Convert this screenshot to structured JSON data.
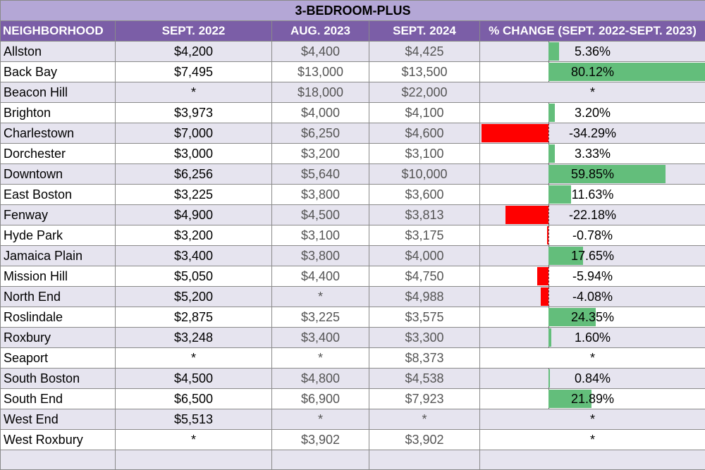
{
  "title": "3-BEDROOM-PLUS",
  "headers": [
    "NEIGHBORHOOD",
    "SEPT. 2022",
    "AUG. 2023",
    "SEPT. 2024",
    "% CHANGE (SEPT. 2022-SEPT. 2023)"
  ],
  "rows": [
    {
      "name": "Allston",
      "sep22": "$4,200",
      "aug23": "$4,400",
      "sep24": "$4,425",
      "pct": "5.36%",
      "val": 5.36
    },
    {
      "name": "Back Bay",
      "sep22": "$7,495",
      "aug23": "$13,000",
      "sep24": "$13,500",
      "pct": "80.12%",
      "val": 80.12
    },
    {
      "name": "Beacon Hill",
      "sep22": "*",
      "aug23": "$18,000",
      "sep24": "$22,000",
      "pct": "*",
      "val": null
    },
    {
      "name": "Brighton",
      "sep22": "$3,973",
      "aug23": "$4,000",
      "sep24": "$4,100",
      "pct": "3.20%",
      "val": 3.2
    },
    {
      "name": "Charlestown",
      "sep22": "$7,000",
      "aug23": "$6,250",
      "sep24": "$4,600",
      "pct": "-34.29%",
      "val": -34.29
    },
    {
      "name": "Dorchester",
      "sep22": "$3,000",
      "aug23": "$3,200",
      "sep24": "$3,100",
      "pct": "3.33%",
      "val": 3.33
    },
    {
      "name": "Downtown",
      "sep22": "$6,256",
      "aug23": "$5,640",
      "sep24": "$10,000",
      "pct": "59.85%",
      "val": 59.85
    },
    {
      "name": "East Boston",
      "sep22": "$3,225",
      "aug23": "$3,800",
      "sep24": "$3,600",
      "pct": "11.63%",
      "val": 11.63
    },
    {
      "name": "Fenway",
      "sep22": "$4,900",
      "aug23": "$4,500",
      "sep24": "$3,813",
      "pct": "-22.18%",
      "val": -22.18
    },
    {
      "name": "Hyde Park",
      "sep22": "$3,200",
      "aug23": "$3,100",
      "sep24": "$3,175",
      "pct": "-0.78%",
      "val": -0.78
    },
    {
      "name": "Jamaica Plain",
      "sep22": "$3,400",
      "aug23": "$3,800",
      "sep24": "$4,000",
      "pct": "17.65%",
      "val": 17.65
    },
    {
      "name": "Mission Hill",
      "sep22": "$5,050",
      "aug23": "$4,400",
      "sep24": "$4,750",
      "pct": "-5.94%",
      "val": -5.94
    },
    {
      "name": "North End",
      "sep22": "$5,200",
      "aug23": "*",
      "sep24": "$4,988",
      "pct": "-4.08%",
      "val": -4.08
    },
    {
      "name": "Roslindale",
      "sep22": "$2,875",
      "aug23": "$3,225",
      "sep24": "$3,575",
      "pct": "24.35%",
      "val": 24.35
    },
    {
      "name": "Roxbury",
      "sep22": "$3,248",
      "aug23": "$3,400",
      "sep24": "$3,300",
      "pct": "1.60%",
      "val": 1.6
    },
    {
      "name": "Seaport",
      "sep22": "*",
      "aug23": "*",
      "sep24": "$8,373",
      "pct": "*",
      "val": null
    },
    {
      "name": "South Boston",
      "sep22": "$4,500",
      "aug23": "$4,800",
      "sep24": "$4,538",
      "pct": "0.84%",
      "val": 0.84
    },
    {
      "name": "South End",
      "sep22": "$6,500",
      "aug23": "$6,900",
      "sep24": "$7,923",
      "pct": "21.89%",
      "val": 21.89
    },
    {
      "name": "West End",
      "sep22": "$5,513",
      "aug23": "*",
      "sep24": "*",
      "pct": "*",
      "val": null
    },
    {
      "name": "West Roxbury",
      "sep22": "*",
      "aug23": "$3,902",
      "sep24": "$3,902",
      "pct": "*",
      "val": null
    }
  ],
  "colors": {
    "header_bg": "#7b5ea7",
    "title_bg": "#b4a7d6",
    "alt_row": "#e6e4ef",
    "bar_positive": "#63be7b",
    "bar_negative": "#ff0000"
  }
}
